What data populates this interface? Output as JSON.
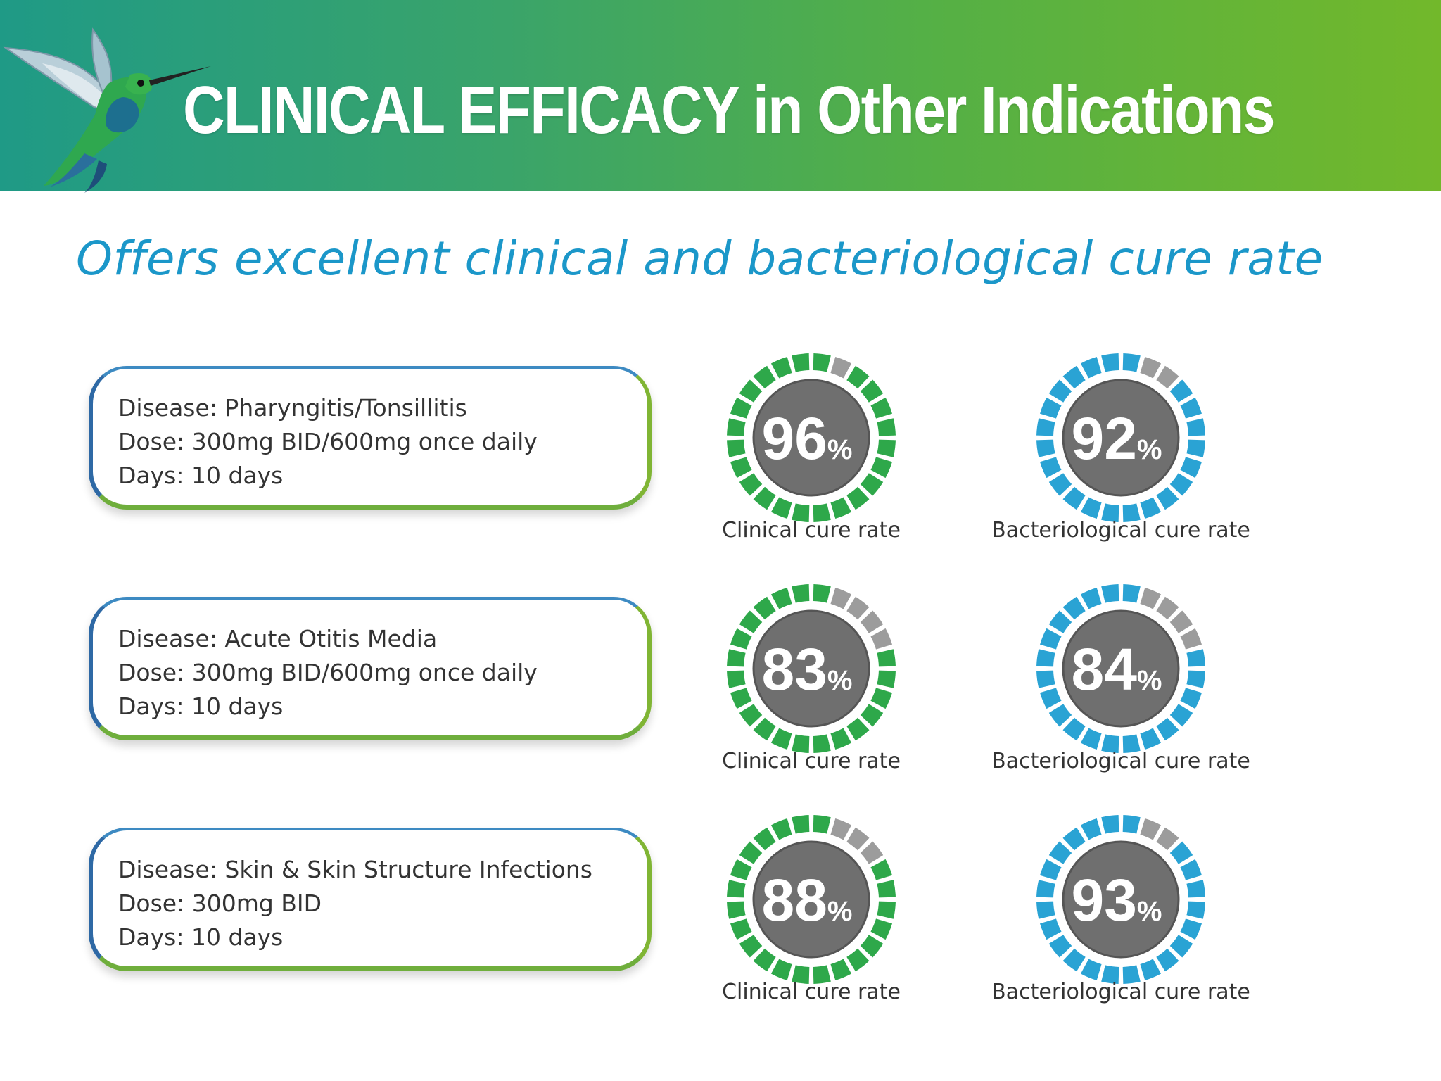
{
  "header": {
    "title": "CLINICAL EFFICACY in Other Indications",
    "logo_icon": "hummingbird-icon"
  },
  "subtitle": "Offers excellent clinical and bacteriological cure rate",
  "colors": {
    "clinical_ring": "#2ea84a",
    "bacteriological_ring": "#2aa3d4",
    "ring_unfilled": "#9c9c9c",
    "gauge_center": "#6f6f6f",
    "subtitle": "#1b97c9"
  },
  "indications": [
    {
      "disease": "Disease: Pharyngitis/Tonsillitis",
      "dose": "Dose: 300mg BID/600mg once daily",
      "days": "Days: 10 days",
      "clinical": {
        "value": 96,
        "value_label": "96",
        "unit": "%",
        "caption": "Clinical cure rate"
      },
      "bacteriological": {
        "value": 92,
        "value_label": "92",
        "unit": "%",
        "caption": "Bacteriological cure rate"
      }
    },
    {
      "disease": "Disease: Acute Otitis Media",
      "dose": "Dose: 300mg BID/600mg once daily",
      "days": "Days: 10 days",
      "clinical": {
        "value": 83,
        "value_label": "83",
        "unit": "%",
        "caption": "Clinical cure rate"
      },
      "bacteriological": {
        "value": 84,
        "value_label": "84",
        "unit": "%",
        "caption": "Bacteriological cure rate"
      }
    },
    {
      "disease": "Disease: Skin & Skin Structure Infections",
      "dose": "Dose: 300mg BID",
      "days": "Days: 10 days",
      "clinical": {
        "value": 88,
        "value_label": "88",
        "unit": "%",
        "caption": "Clinical cure rate"
      },
      "bacteriological": {
        "value": 93,
        "value_label": "93",
        "unit": "%",
        "caption": "Bacteriological cure rate"
      }
    }
  ]
}
